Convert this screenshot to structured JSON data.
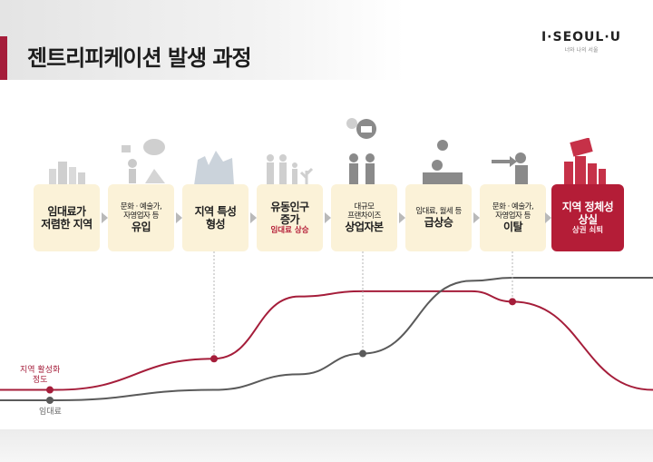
{
  "header": {
    "title": "젠트리피케이션 발생 과정",
    "logo": "I·SEOUL·U",
    "logo_sub": "너와 나의 서울"
  },
  "stages": [
    {
      "line1": "임대료가",
      "line2": "저렴한 지역",
      "icon": "buildings-icon"
    },
    {
      "small1": "문화 · 예술가,",
      "small2": "자영업자 등",
      "line2": "유입",
      "icon": "artist-icon"
    },
    {
      "line1": "지역 특성",
      "line2": "형성",
      "icon": "city-map-icon"
    },
    {
      "line1": "유동인구",
      "line2": "증가",
      "note": "임대료 상승",
      "icon": "crowd-icon"
    },
    {
      "small1": "대규모",
      "small2": "프랜차이즈",
      "line2": "상업자본",
      "icon": "investors-icon"
    },
    {
      "small1": "임대료, 월세 등",
      "line2": "급상승",
      "icon": "desk-worker-icon"
    },
    {
      "small1": "문화 · 예술가,",
      "small2": "자영업자 등",
      "line2": "이탈",
      "icon": "departure-icon"
    },
    {
      "line1": "지역 정체성",
      "line2": "상실",
      "note": "상권 쇠퇴",
      "icon": "collapse-icon"
    }
  ],
  "chart_data": {
    "type": "line",
    "series": [
      {
        "name": "지역 활성화\n정도",
        "color": "#a51d3a",
        "values": [
          0.1,
          0.1,
          0.4,
          1.0,
          1.05,
          1.05,
          0.95,
          0.1
        ]
      },
      {
        "name": "임대료",
        "color": "#5a5a5a",
        "values": [
          0.0,
          0.0,
          0.1,
          0.25,
          0.45,
          1.15,
          1.18,
          1.18
        ]
      }
    ],
    "labels": {
      "activation": "지역 활성화\n정도",
      "rent": "임대료"
    }
  },
  "colors": {
    "accent": "#a51d3a",
    "card": "#fbf2d8",
    "arrow": "#b9b9b9"
  }
}
